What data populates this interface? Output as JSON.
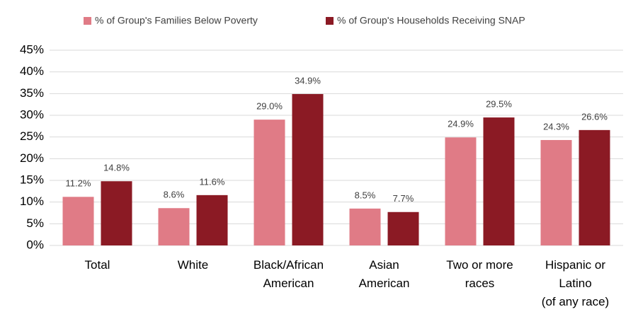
{
  "chart_data": {
    "type": "bar",
    "categories": [
      "Total",
      "White",
      "Black/African\nAmerican",
      "Asian\nAmerican",
      "Two or more\nraces",
      "Hispanic or\nLatino\n(of any race)"
    ],
    "series": [
      {
        "name": "% of Group's Families Below Poverty",
        "color": "#e07b86",
        "values": [
          11.2,
          8.6,
          29.0,
          8.5,
          24.9,
          24.3
        ],
        "value_labels": [
          "11.2%",
          "8.6%",
          "29.0%",
          "8.5%",
          "24.9%",
          "24.3%"
        ]
      },
      {
        "name": "% of Group's Households Receiving SNAP",
        "color": "#8b1a24",
        "values": [
          14.8,
          11.6,
          34.9,
          7.7,
          29.5,
          26.6
        ],
        "value_labels": [
          "14.8%",
          "11.6%",
          "34.9%",
          "7.7%",
          "29.5%",
          "26.6%"
        ]
      }
    ],
    "ylim": [
      0,
      45
    ],
    "yticks": [
      {
        "value": 0,
        "label": "0%"
      },
      {
        "value": 5,
        "label": "5%"
      },
      {
        "value": 10,
        "label": "10%"
      },
      {
        "value": 15,
        "label": "15%"
      },
      {
        "value": 20,
        "label": "20%"
      },
      {
        "value": 25,
        "label": "25%"
      },
      {
        "value": 30,
        "label": "30%"
      },
      {
        "value": 35,
        "label": "35%"
      },
      {
        "value": 40,
        "label": "40%"
      },
      {
        "value": 45,
        "label": "45%"
      }
    ],
    "grid": true,
    "legend": "top"
  }
}
